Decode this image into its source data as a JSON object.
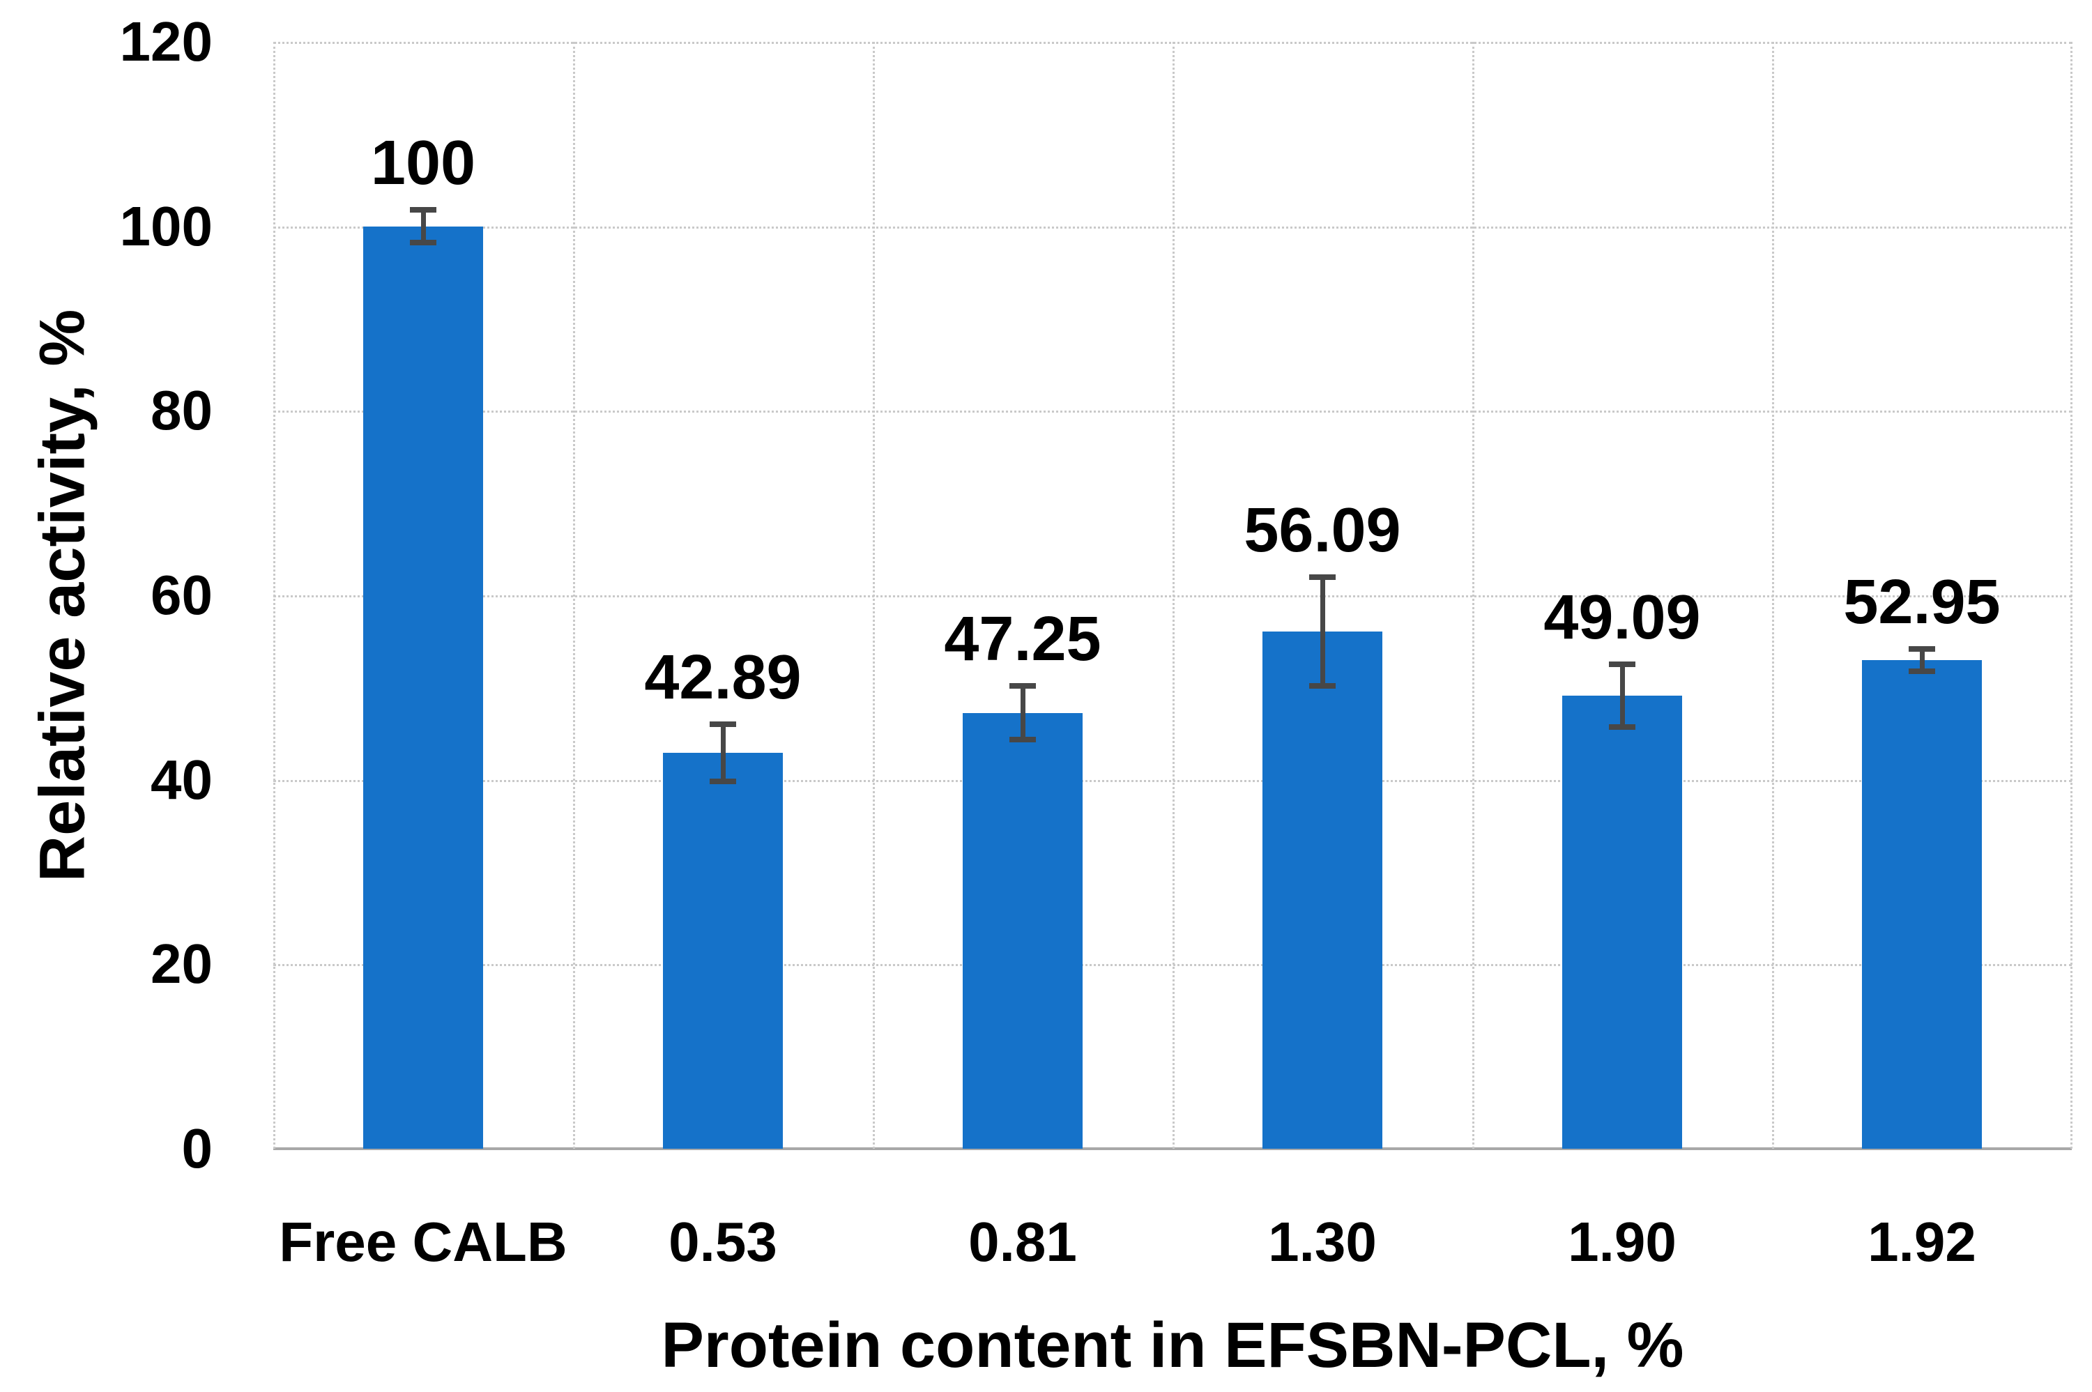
{
  "chart_data": {
    "type": "bar",
    "title": "",
    "categories": [
      "Free CALB",
      "0.53",
      "0.81",
      "1.30",
      "1.90",
      "1.92"
    ],
    "values": [
      100,
      42.89,
      47.25,
      56.09,
      49.09,
      52.95
    ],
    "data_labels": [
      "100",
      "42.89",
      "47.25",
      "56.09",
      "49.09",
      "52.95"
    ],
    "error_bars": [
      2.1,
      3.4,
      3.2,
      6.2,
      3.7,
      1.5
    ],
    "xlabel": "Protein content in EFSBN-PCL, %",
    "ylabel": "Relative activity, %",
    "ylim": [
      0,
      120
    ],
    "ytick_step": 20,
    "yticks": [
      "0",
      "20",
      "40",
      "60",
      "80",
      "100",
      "120"
    ],
    "grid": true,
    "legend": null,
    "colors": {
      "bar": "#1572C9",
      "error_bar": "#474747",
      "gridline": "#c9c9c9",
      "axis_line": "#a8a8a8",
      "text": "#000000",
      "background": "#ffffff"
    }
  }
}
